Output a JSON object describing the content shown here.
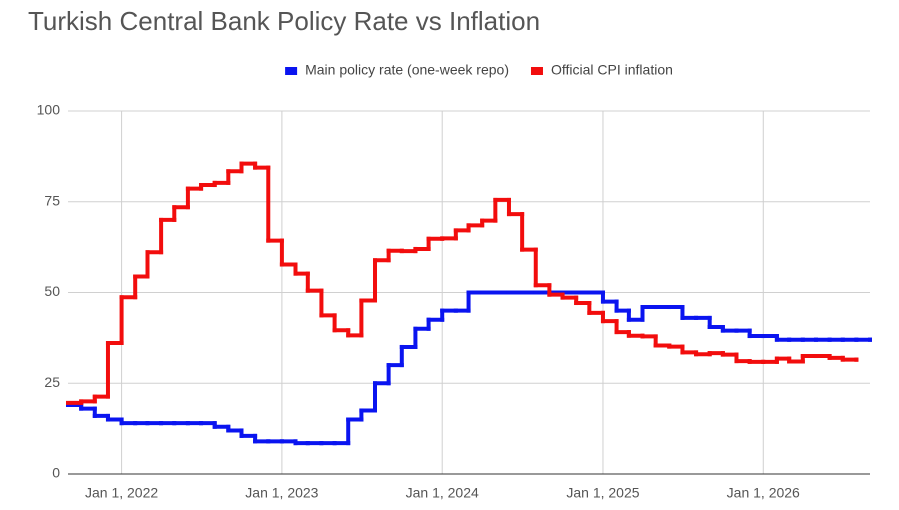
{
  "chart_data": {
    "type": "stepped-line",
    "title": "Turkish Central Bank Policy Rate vs Inflation",
    "legend": "top",
    "grid": true,
    "x": [
      "2021-09-01",
      "2021-10-01",
      "2021-11-01",
      "2021-12-01",
      "2022-01-01",
      "2022-02-01",
      "2022-03-01",
      "2022-04-01",
      "2022-05-01",
      "2022-06-01",
      "2022-07-01",
      "2022-08-01",
      "2022-09-01",
      "2022-10-01",
      "2022-11-01",
      "2022-12-01",
      "2023-01-01",
      "2023-02-01",
      "2023-03-01",
      "2023-04-01",
      "2023-05-01",
      "2023-06-01",
      "2023-07-01",
      "2023-08-01",
      "2023-09-01",
      "2023-10-01",
      "2023-11-01",
      "2023-12-01",
      "2024-01-01",
      "2024-02-01",
      "2024-03-01",
      "2024-04-01",
      "2024-05-01",
      "2024-06-01",
      "2024-07-01",
      "2024-08-01",
      "2024-09-01",
      "2024-10-01",
      "2024-11-01",
      "2024-12-01",
      "2025-01-01",
      "2025-02-01",
      "2025-03-01",
      "2025-04-01",
      "2025-05-01",
      "2025-06-01",
      "2025-07-01",
      "2025-08-01",
      "2025-09-01",
      "2025-10-01",
      "2025-11-01",
      "2025-12-01",
      "2026-01-01",
      "2026-02-01",
      "2026-03-01",
      "2026-04-01",
      "2026-05-01",
      "2026-06-01",
      "2026-07-01",
      "2026-08-01",
      "2026-09-01"
    ],
    "series": [
      {
        "name": "Main policy rate (one-week repo)",
        "color": "#0a14f0",
        "values": [
          19,
          18,
          16,
          15,
          14,
          14,
          14,
          14,
          14,
          14,
          14,
          13,
          12,
          10.5,
          9,
          9,
          9,
          8.5,
          8.5,
          8.5,
          8.5,
          15,
          17.5,
          25,
          30,
          35,
          40,
          42.5,
          45,
          45,
          50,
          50,
          50,
          50,
          50,
          50,
          50,
          50,
          50,
          50,
          47.5,
          45,
          42.5,
          46,
          46,
          46,
          43,
          43,
          40.5,
          39.5,
          39.5,
          38,
          38,
          37,
          37,
          37,
          37,
          37,
          37,
          37,
          37
        ]
      },
      {
        "name": "Official CPI inflation",
        "color": "#f20d0d",
        "values": [
          19.6,
          20,
          21.3,
          36.1,
          48.7,
          54.4,
          61.1,
          70,
          73.5,
          78.6,
          79.6,
          80.2,
          83.4,
          85.5,
          84.4,
          64.3,
          57.7,
          55.2,
          50.5,
          43.7,
          39.6,
          38.2,
          47.8,
          58.9,
          61.5,
          61.4,
          62,
          64.8,
          64.9,
          67.1,
          68.5,
          69.8,
          75.5,
          71.6,
          61.8,
          52,
          49.4,
          48.6,
          47.1,
          44.4,
          42.1,
          39.1,
          38.1,
          37.9,
          35.4,
          35.1,
          33.5,
          33,
          33.3,
          32.9,
          31.1,
          30.9,
          30.9,
          31.8,
          31,
          32.5,
          32.5,
          32,
          31.5,
          31.5,
          null
        ]
      }
    ],
    "xlim": [
      "2021-09-01",
      "2026-09-01"
    ],
    "xticks": [
      {
        "value": "2022-01-01",
        "label": "Jan 1, 2022"
      },
      {
        "value": "2023-01-01",
        "label": "Jan 1, 2023"
      },
      {
        "value": "2024-01-01",
        "label": "Jan 1, 2024"
      },
      {
        "value": "2025-01-01",
        "label": "Jan 1, 2025"
      },
      {
        "value": "2026-01-01",
        "label": "Jan 1, 2026"
      }
    ],
    "ylim": [
      0,
      100
    ],
    "yticks": [
      0,
      25,
      50,
      75,
      100
    ]
  }
}
